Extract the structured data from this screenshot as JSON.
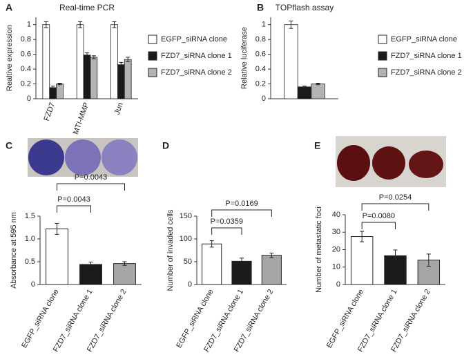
{
  "chart_data": [
    {
      "type": "bar",
      "panel": "A",
      "title": "Real-time PCR",
      "y_label": "Realtive expression",
      "categories": [
        "FZD7",
        "MTI-MMP",
        "Jun"
      ],
      "series": [
        {
          "name": "EGFP_siRNA clone",
          "color": "#ffffff",
          "values": [
            1,
            1,
            1
          ],
          "errors": [
            0.04,
            0.04,
            0.04
          ]
        },
        {
          "name": "FZD7_siRNA clone 1",
          "color": "#1a1a1a",
          "values": [
            0.15,
            0.59,
            0.46
          ],
          "errors": [
            0.02,
            0.03,
            0.03
          ]
        },
        {
          "name": "FZD7_siRNA clone 2",
          "color": "#b3b3b3",
          "values": [
            0.2,
            0.56,
            0.53
          ],
          "errors": [
            0.01,
            0.02,
            0.03
          ]
        }
      ],
      "ylim": [
        0,
        1.1
      ],
      "yticks": [
        0,
        0.2,
        0.4,
        0.6,
        0.8,
        1
      ]
    },
    {
      "type": "bar",
      "panel": "B",
      "title": "TOPflash assay",
      "y_label": "Relative luciferase",
      "series": [
        {
          "name": "EGFP_siRNA clone",
          "color": "#ffffff",
          "values": [
            1
          ],
          "errors": [
            0.05
          ]
        },
        {
          "name": "FZD7_siRNA clone 1",
          "color": "#1a1a1a",
          "values": [
            0.16
          ],
          "errors": [
            0.01
          ]
        },
        {
          "name": "FZD7_siRNA clone 2",
          "color": "#b3b3b3",
          "values": [
            0.2
          ],
          "errors": [
            0.01
          ]
        }
      ],
      "ylim": [
        0,
        1.1
      ],
      "yticks": [
        0,
        0.2,
        0.4,
        0.6,
        0.8,
        1
      ]
    },
    {
      "type": "bar",
      "panel": "C",
      "y_label": "Absorbance at 595 nm",
      "categories": [
        "EGFP_siRNA clone",
        "FZD7_siRNA clone 1",
        "FZD7_siRNA clone 2"
      ],
      "values": [
        1.22,
        0.44,
        0.46
      ],
      "errors": [
        0.12,
        0.05,
        0.04
      ],
      "colors": [
        "#ffffff",
        "#1a1a1a",
        "#a6a6a6"
      ],
      "ylim": [
        0,
        1.5
      ],
      "yticks": [
        0,
        0.5,
        {
          "value": 1,
          "label": "1.0"
        },
        1.5
      ],
      "annotations": [
        "P=0.0043",
        "P=0.0043"
      ]
    },
    {
      "type": "bar",
      "panel": "D",
      "y_label": "Number of invaded cells",
      "categories": [
        "EGFP_siRNA clone",
        "FZD7_siRNA clone 1",
        "FZD7_siRNA clone 2"
      ],
      "values": [
        89,
        51,
        64
      ],
      "errors": [
        7,
        7,
        5
      ],
      "colors": [
        "#ffffff",
        "#1a1a1a",
        "#a6a6a6"
      ],
      "ylim": [
        0,
        150
      ],
      "yticks": [
        0,
        50,
        100,
        150
      ],
      "annotations": [
        "P=0.0359",
        "P=0.0169"
      ]
    },
    {
      "type": "bar",
      "panel": "E",
      "y_label": "Number of  metastatic foci",
      "categories": [
        "EGFP_siRNA clone",
        "FZD7_siRNA clone 1",
        "FZD7_siRNA clone 2"
      ],
      "values": [
        27.5,
        16.5,
        14
      ],
      "errors": [
        3,
        3.3,
        3.5
      ],
      "colors": [
        "#ffffff",
        "#1a1a1a",
        "#a6a6a6"
      ],
      "ylim": [
        0,
        40
      ],
      "yticks": [
        0,
        10,
        20,
        30,
        40
      ],
      "annotations": [
        "P=0.0080",
        "P=0.0254"
      ]
    }
  ]
}
